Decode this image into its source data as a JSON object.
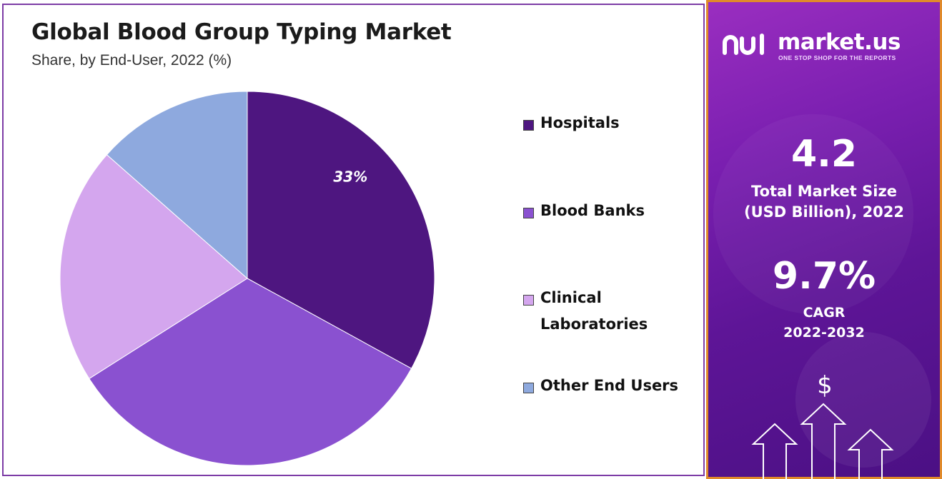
{
  "header": {
    "title": "Global Blood Group Typing Market",
    "subtitle": "Share, by End-User, 2022 (%)"
  },
  "chart_data": {
    "type": "pie",
    "title": "Global Blood Group Typing Market",
    "subtitle": "Share, by End-User, 2022 (%)",
    "categories": [
      "Hospitals",
      "Blood Banks",
      "Clinical Laboratories",
      "Other End Users"
    ],
    "values": [
      33,
      33,
      20.5,
      13.5
    ],
    "unit": "%",
    "colors": [
      "#4e1680",
      "#8a51d0",
      "#d4a6ee",
      "#8ea9de"
    ],
    "data_labels": [
      "33%",
      "",
      "",
      ""
    ],
    "legend_placement": "right"
  },
  "legend": [
    {
      "label": "Hospitals",
      "color": "#4e1680"
    },
    {
      "label": "Blood Banks",
      "color": "#8a51d0"
    },
    {
      "label": "Clinical Laboratories",
      "color": "#d4a6ee"
    },
    {
      "label": "Other End Users",
      "color": "#8ea9de"
    }
  ],
  "side_panel": {
    "brand": "market.us",
    "tagline": "ONE STOP SHOP FOR THE REPORTS",
    "market_size_value": "4.2",
    "market_size_label_line1": "Total Market Size",
    "market_size_label_line2": "(USD Billion), 2022",
    "cagr_value": "9.7%",
    "cagr_label": "CAGR",
    "cagr_period": "2022-2032",
    "dollar_symbol": "$",
    "accent_border": "#e08a2b",
    "icons": [
      "market-us-logo-icon",
      "dollar-icon",
      "up-arrow-icon"
    ]
  }
}
